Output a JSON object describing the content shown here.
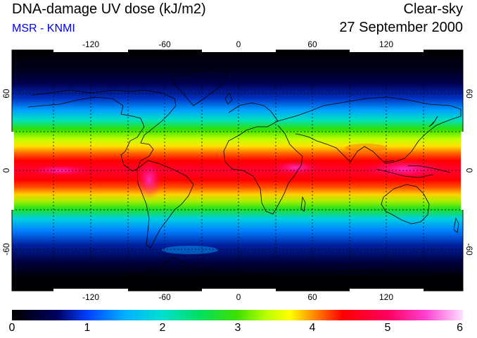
{
  "header": {
    "title": "DNA-damage UV dose (kJ/m2)",
    "subtitle": "MSR - KNMI",
    "mode": "Clear-sky",
    "date": "27 September 2000"
  },
  "map": {
    "projection": "equirectangular",
    "lon_ticks": [
      "-120",
      "-60",
      "0",
      "60",
      "120"
    ],
    "lat_ticks": [
      "60",
      "0",
      "-60"
    ],
    "grid_lines": "dotted, every 30 degrees",
    "colors": {
      "frame": "#000000",
      "coastline": "#000000",
      "gridline": "#000000"
    }
  },
  "colorbar": {
    "labels": [
      "0",
      "1",
      "2",
      "3",
      "4",
      "5",
      "6"
    ],
    "min": 0,
    "max": 6,
    "stops": [
      {
        "value": 0.0,
        "color": "#000000"
      },
      {
        "value": 0.6,
        "color": "#000060"
      },
      {
        "value": 1.0,
        "color": "#0040ff"
      },
      {
        "value": 1.5,
        "color": "#00b0ff"
      },
      {
        "value": 2.0,
        "color": "#00e0d0"
      },
      {
        "value": 2.5,
        "color": "#00e060"
      },
      {
        "value": 3.0,
        "color": "#40e000"
      },
      {
        "value": 3.4,
        "color": "#c0ff00"
      },
      {
        "value": 3.7,
        "color": "#ffff00"
      },
      {
        "value": 4.0,
        "color": "#ff9000"
      },
      {
        "value": 4.4,
        "color": "#ff0000"
      },
      {
        "value": 5.0,
        "color": "#ff0060"
      },
      {
        "value": 5.5,
        "color": "#ff40d0"
      },
      {
        "value": 6.0,
        "color": "#ffe0ff"
      }
    ]
  }
}
